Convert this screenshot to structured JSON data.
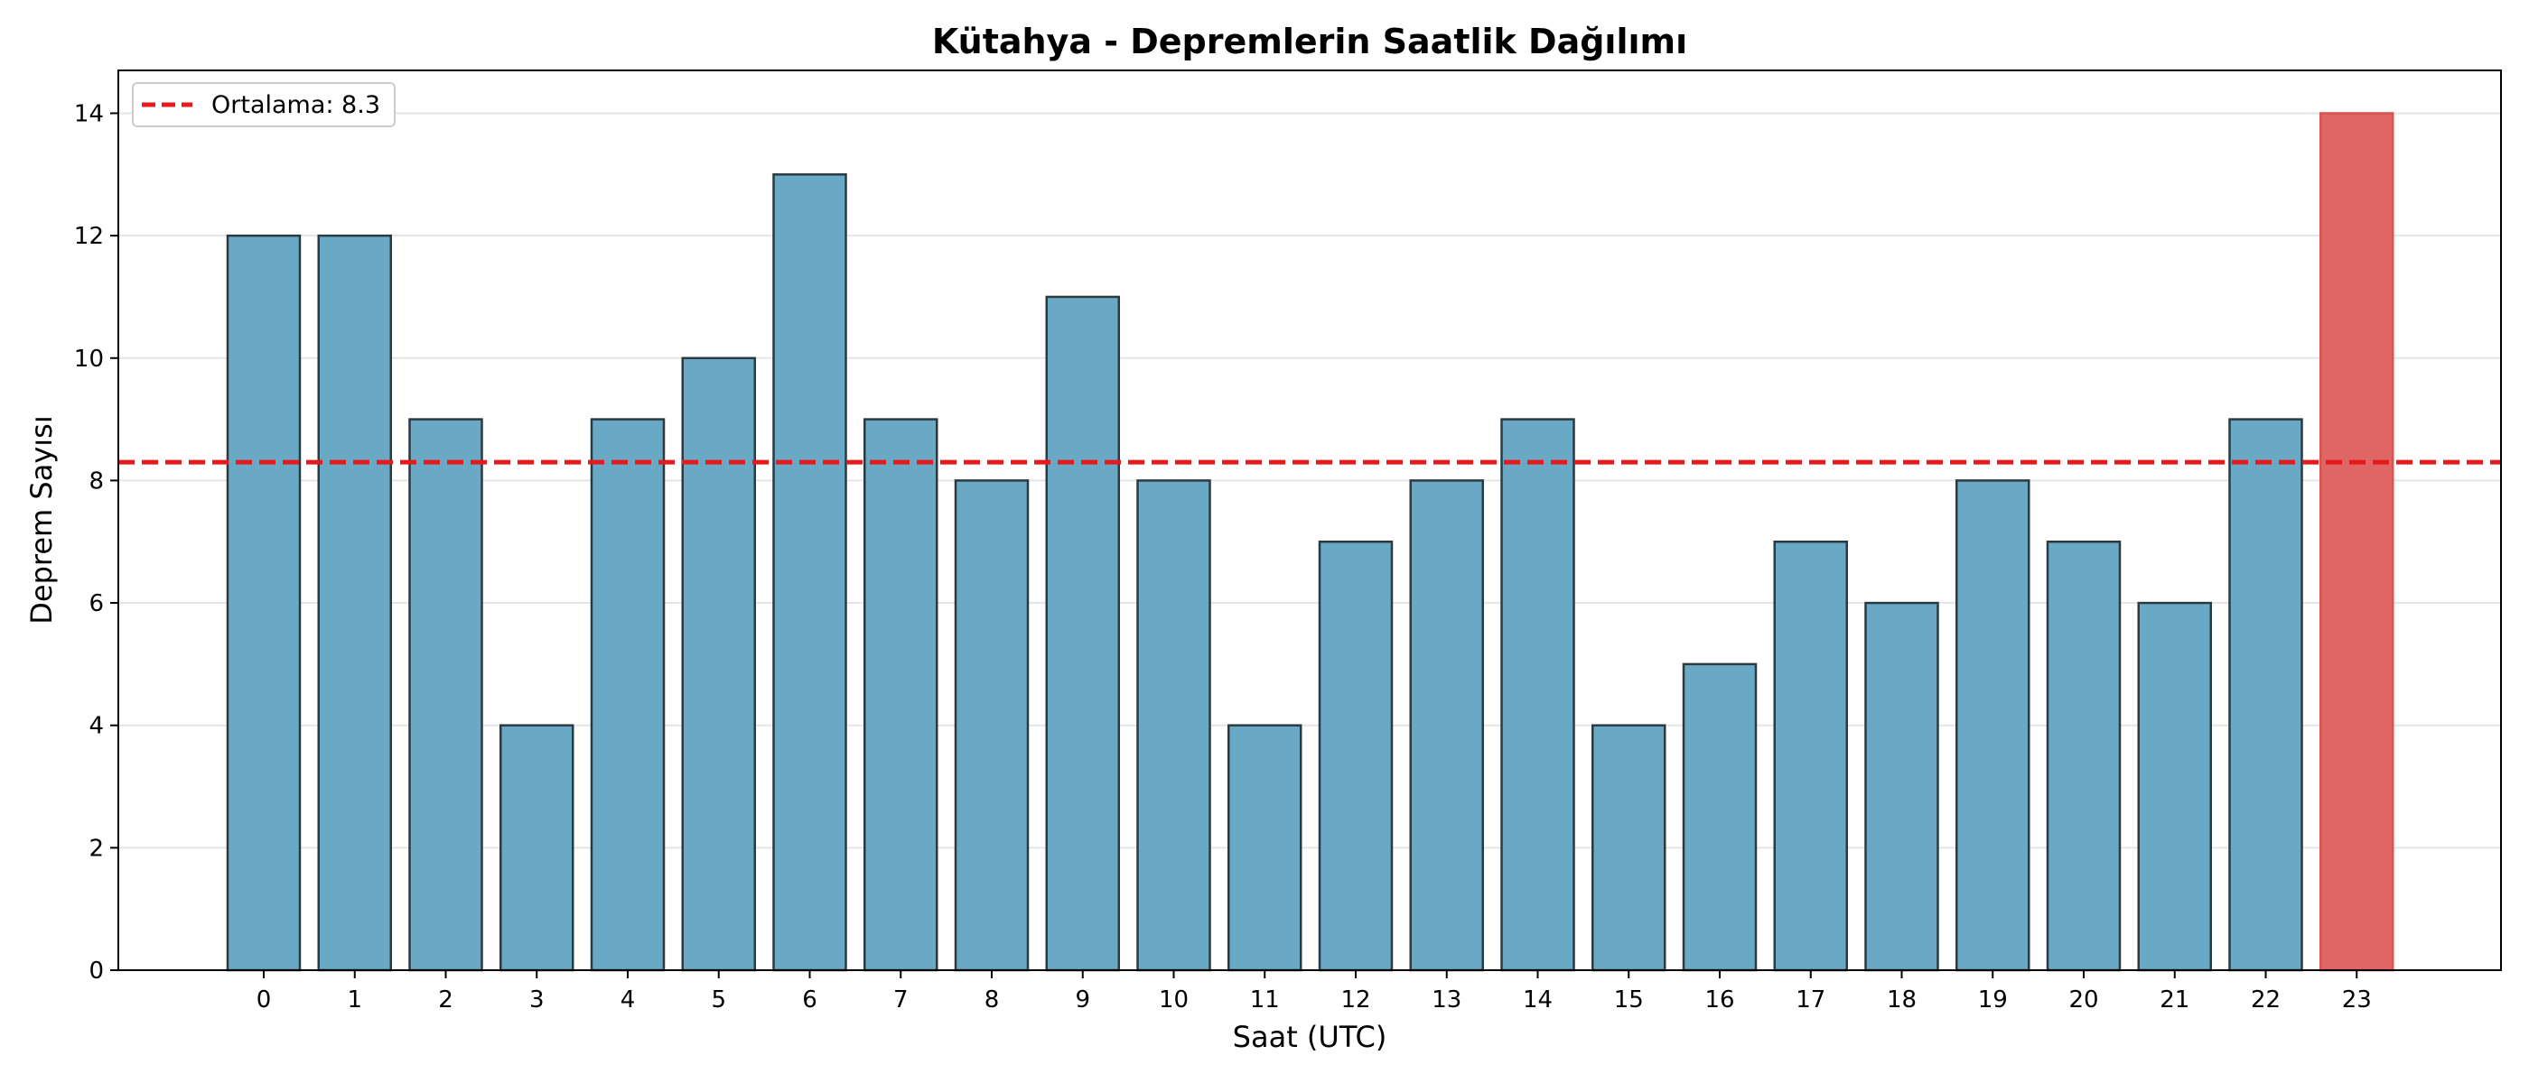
{
  "chart_data": {
    "type": "bar",
    "title": "Kütahya - Depremlerin Saatlik Dağılımı",
    "xlabel": "Saat (UTC)",
    "ylabel": "Deprem Sayısı",
    "categories": [
      "0",
      "1",
      "2",
      "3",
      "4",
      "5",
      "6",
      "7",
      "8",
      "9",
      "10",
      "11",
      "12",
      "13",
      "14",
      "15",
      "16",
      "17",
      "18",
      "19",
      "20",
      "21",
      "22",
      "23"
    ],
    "values": [
      12,
      12,
      9,
      4,
      9,
      10,
      13,
      9,
      8,
      11,
      8,
      4,
      7,
      8,
      9,
      4,
      5,
      7,
      6,
      8,
      7,
      6,
      9,
      14
    ],
    "highlight_index": 23,
    "ylim": [
      0,
      14.7
    ],
    "yticks": [
      0,
      2,
      4,
      6,
      8,
      10,
      12,
      14
    ],
    "grid": "y",
    "legend_position": "top-left",
    "mean": {
      "value": 8.3,
      "label": "Ortalama: 8.3",
      "color": "#e41a1c"
    },
    "colors": {
      "bar": "#6aa9c6",
      "bar_edge": "#2b3a40",
      "highlight": "#e06666",
      "highlight_edge": "#d9534f",
      "grid": "#e5e5e5"
    }
  }
}
